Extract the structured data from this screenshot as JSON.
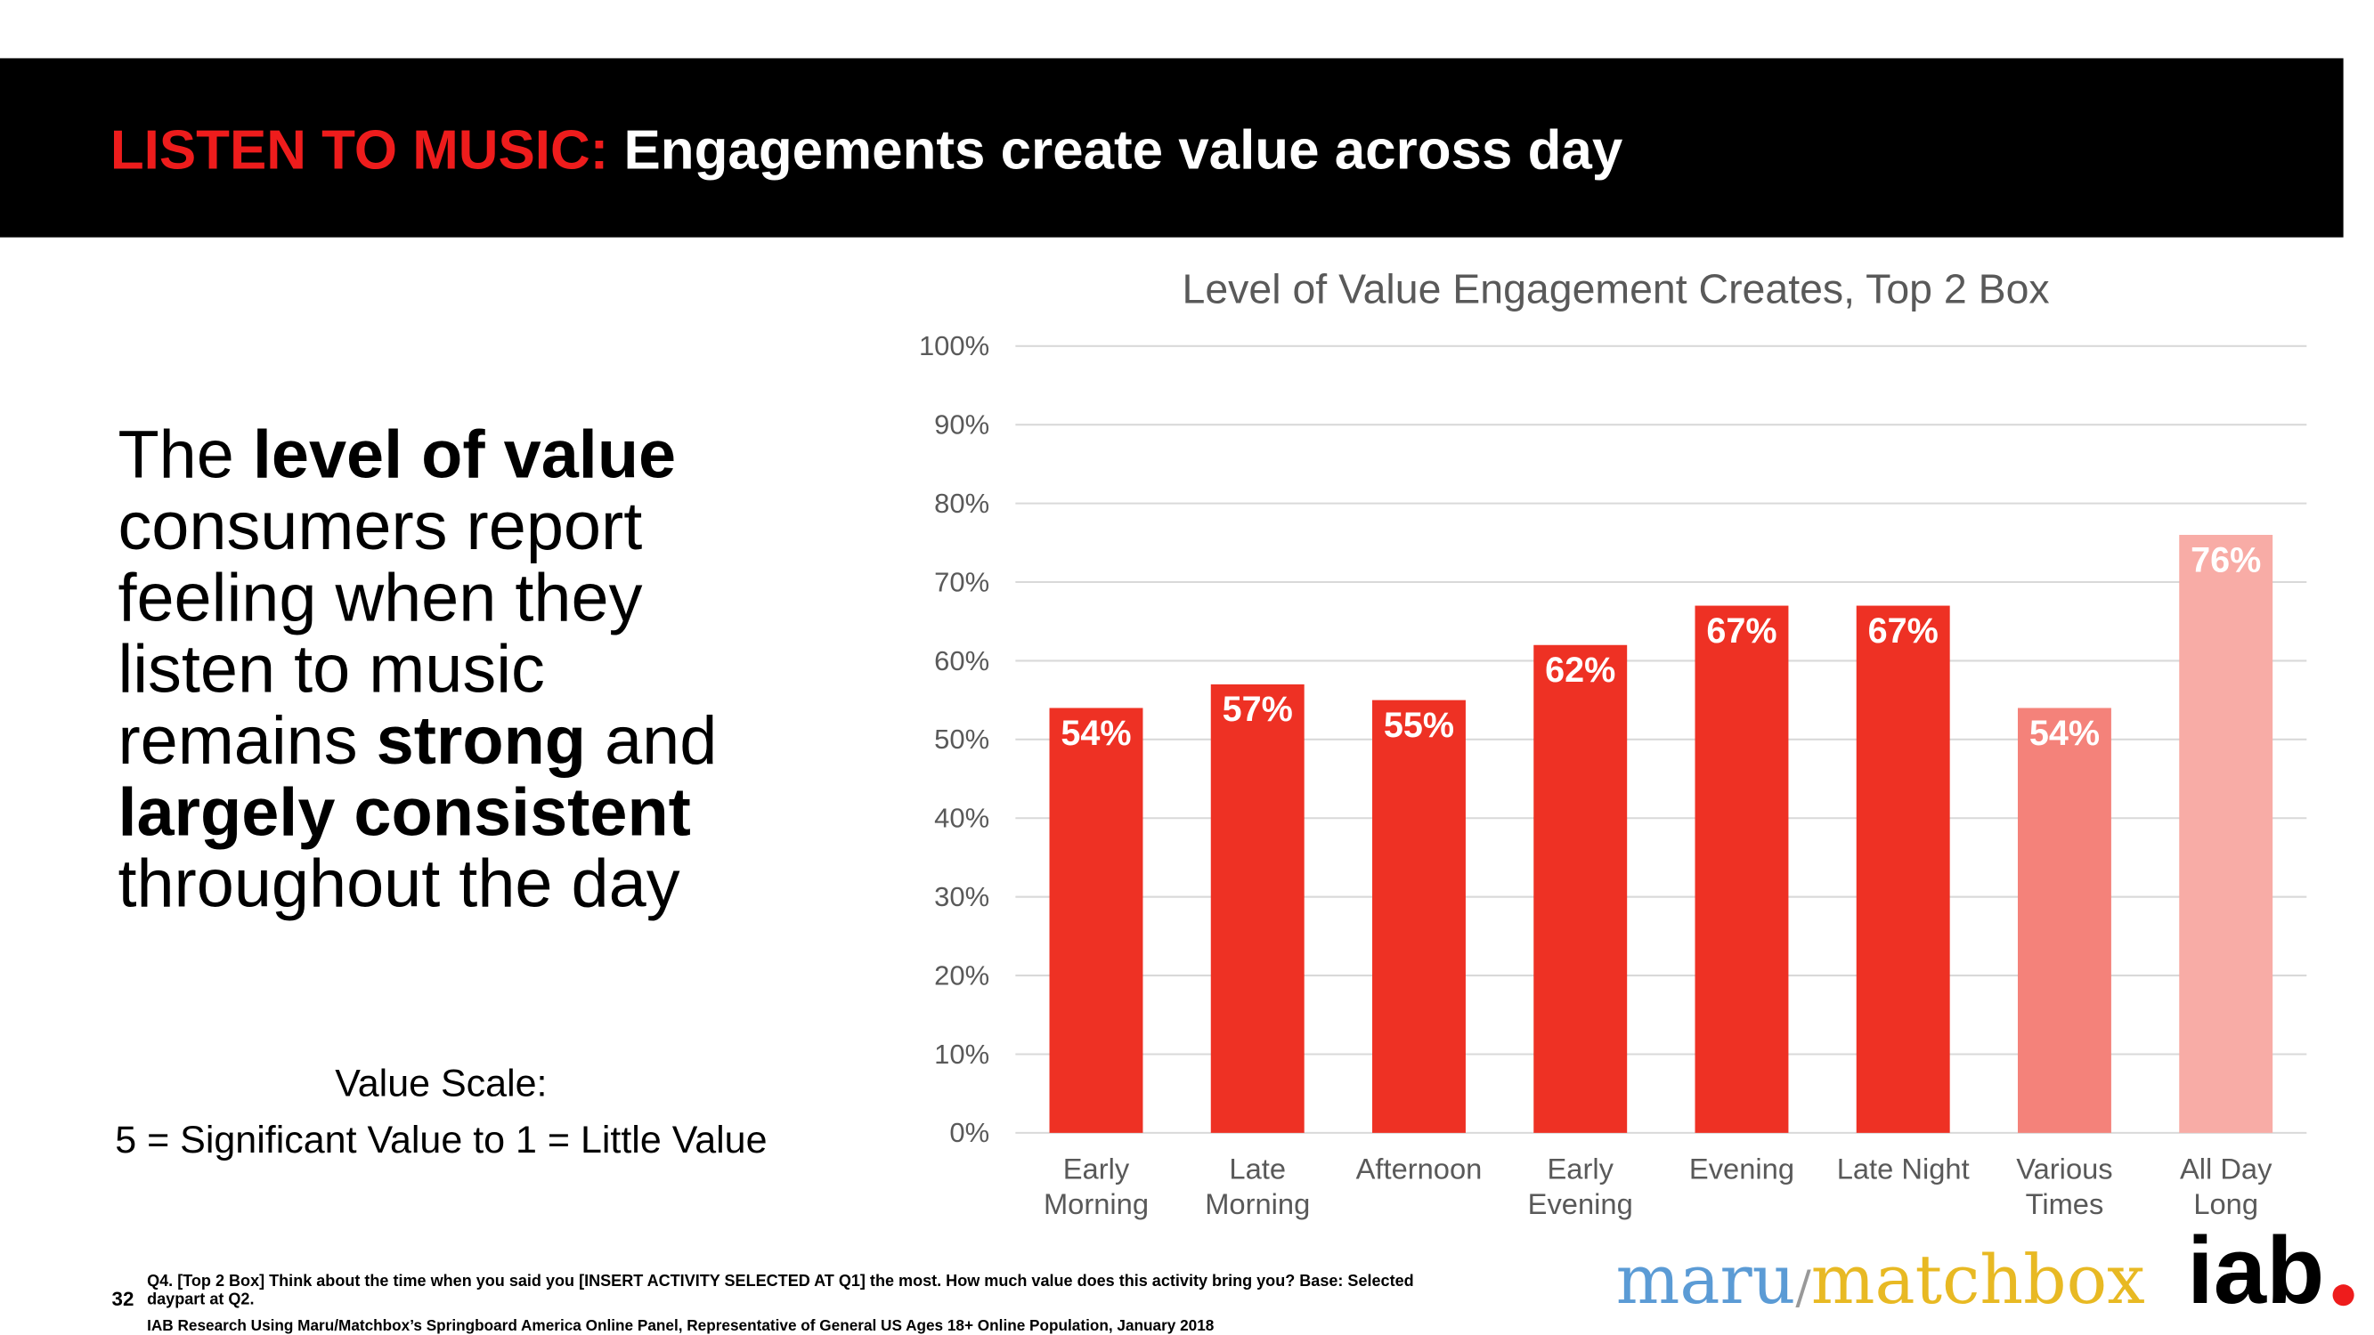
{
  "header": {
    "title_prefix": "LISTEN TO MUSIC:",
    "title": "Engagements create value across day"
  },
  "body": [
    [
      {
        "text": "The ",
        "bold": false
      },
      {
        "text": "level of value",
        "bold": true
      }
    ],
    [
      {
        "text": "consumers report",
        "bold": false
      }
    ],
    [
      {
        "text": "feeling when they",
        "bold": false
      }
    ],
    [
      {
        "text": "listen to music",
        "bold": false
      }
    ],
    [
      {
        "text": "remains ",
        "bold": false
      },
      {
        "text": "strong",
        "bold": true
      },
      {
        "text": " and",
        "bold": false
      }
    ],
    [
      {
        "text": "largely consistent",
        "bold": true
      }
    ],
    [
      {
        "text": "throughout the day",
        "bold": false
      }
    ]
  ],
  "scale_note": [
    "Value Scale:",
    "5 = Significant Value to 1 = Little Value"
  ],
  "chart_data": {
    "type": "bar",
    "title": "Level of Value Engagement Creates, Top 2 Box",
    "categories": [
      "Early\nMorning",
      "Late\nMorning",
      "Afternoon",
      "Early\nEvening",
      "Evening",
      "Late Night",
      "Various\nTimes",
      "All Day\nLong"
    ],
    "values": [
      54,
      57,
      55,
      62,
      67,
      67,
      54,
      76
    ],
    "value_labels": [
      "54%",
      "57%",
      "55%",
      "62%",
      "67%",
      "67%",
      "54%",
      "76%"
    ],
    "colors": [
      "#ee3124",
      "#ee3124",
      "#ee3124",
      "#ee3124",
      "#ee3124",
      "#ee3124",
      "#f4827a",
      "#f8aca6"
    ],
    "ylim": [
      0,
      100
    ],
    "yticks": [
      {
        "value": 0,
        "label": "0%"
      },
      {
        "value": 10,
        "label": "10%"
      },
      {
        "value": 20,
        "label": "20%"
      },
      {
        "value": 30,
        "label": "30%"
      },
      {
        "value": 40,
        "label": "40%"
      },
      {
        "value": 50,
        "label": "50%"
      },
      {
        "value": 60,
        "label": "60%"
      },
      {
        "value": 70,
        "label": "70%"
      },
      {
        "value": 80,
        "label": "80%"
      },
      {
        "value": 90,
        "label": "90%"
      },
      {
        "value": 100,
        "label": "100%"
      }
    ],
    "grid": true
  },
  "footer": {
    "page": "32",
    "notes": [
      "Q4. [Top 2 Box] Think about the time when you said you [INSERT ACTIVITY SELECTED AT Q1] the most.  How much value does this activity bring you? Base: Selected",
      "daypart at Q2.",
      "IAB Research Using Maru/Matchbox’s Springboard America Online Panel, Representative of General US Ages 18+ Online Population, January 2018"
    ]
  },
  "logos": {
    "maru": "maru",
    "slash": "/",
    "matchbox": "matchbox",
    "iab": "iab"
  }
}
